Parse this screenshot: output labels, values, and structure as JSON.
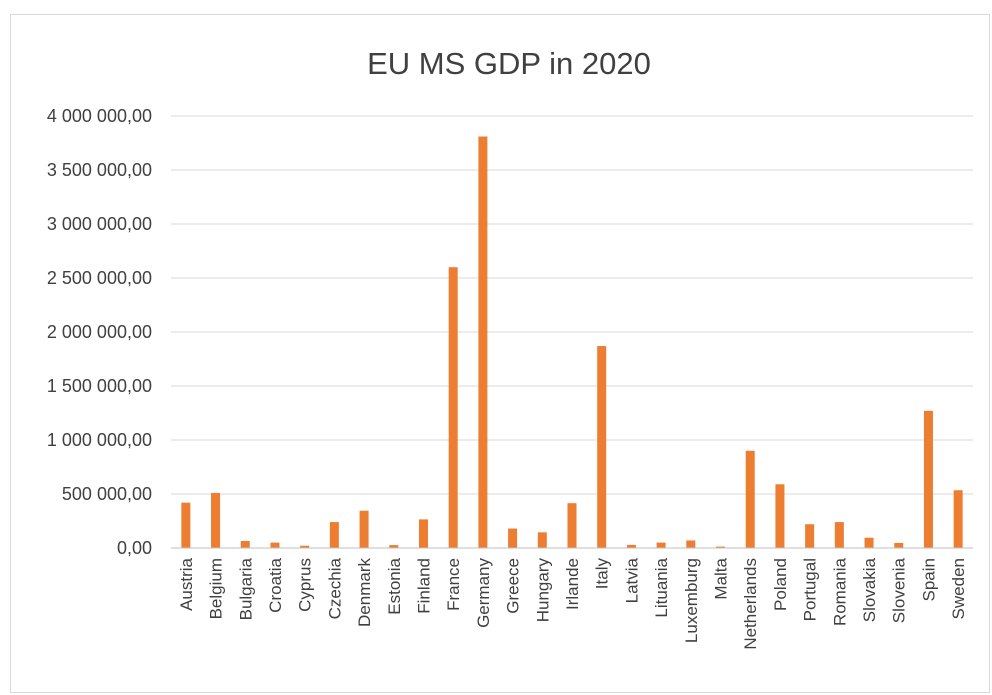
{
  "chart_data": {
    "type": "bar",
    "title": "EU MS GDP in 2020",
    "xlabel": "",
    "ylabel": "",
    "ylim": [
      0,
      4000000
    ],
    "yticks": [
      0,
      500000,
      1000000,
      1500000,
      2000000,
      2500000,
      3000000,
      3500000,
      4000000
    ],
    "ytick_labels": [
      "0,00",
      "500 000,00",
      "1 000 000,00",
      "1 500 000,00",
      "2 000 000,00",
      "2 500 000,00",
      "3 000 000,00",
      "3 500 000,00",
      "4 000 000,00"
    ],
    "grid": true,
    "legend": "none",
    "bar_color": "#ed7d31",
    "categories": [
      "Austria",
      "Belgium",
      "Bulgaria",
      "Croatia",
      "Cyprus",
      "Czechia",
      "Denmark",
      "Estonia",
      "Finland",
      "France",
      "Germany",
      "Greece",
      "Hungary",
      "Irlande",
      "Italy",
      "Latvia",
      "Lituania",
      "Luxemburg",
      "Malta",
      "Netherlands",
      "Poland",
      "Portugal",
      "Romania",
      "Slovakia",
      "Slovenia",
      "Spain",
      "Sweden"
    ],
    "values": [
      420000,
      510000,
      65000,
      50000,
      21000,
      240000,
      345000,
      27000,
      265000,
      2600000,
      3810000,
      180000,
      145000,
      415000,
      1870000,
      29000,
      50000,
      70000,
      13000,
      900000,
      590000,
      220000,
      240000,
      95000,
      47000,
      1270000,
      535000
    ]
  }
}
